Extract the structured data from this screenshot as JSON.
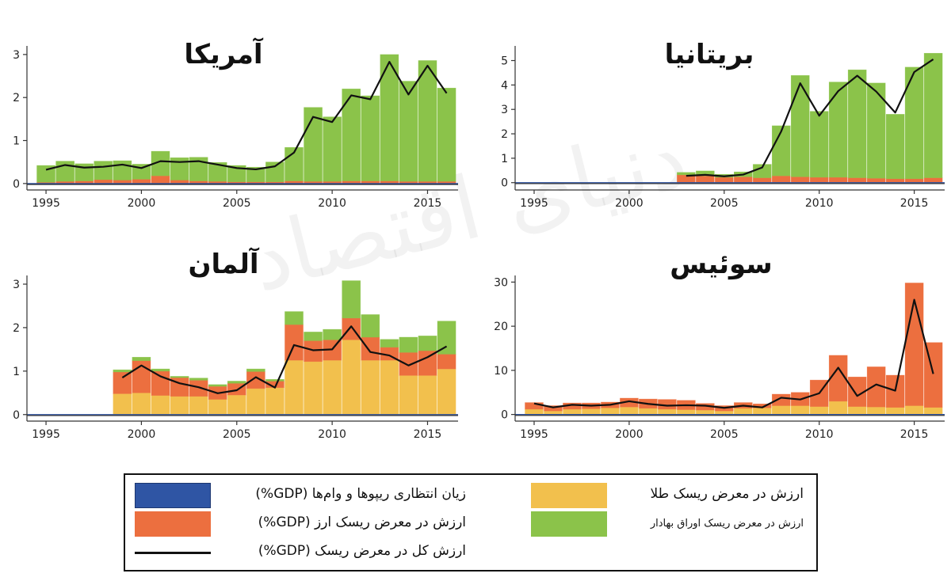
{
  "colors": {
    "repo": "#2f55a4",
    "fx": "#ec6f3f",
    "gold": "#f2c04d",
    "securities": "#8bc34a",
    "total": "#111111",
    "axis": "#333333"
  },
  "chart_data": [
    {
      "type": "bar",
      "title": "آمریکا",
      "xlim": [
        1994,
        2016.6
      ],
      "ylim": [
        -0.15,
        3.2
      ],
      "yticks": [
        0,
        1,
        2,
        3
      ],
      "xticks": [
        1995,
        2000,
        2005,
        2010,
        2015
      ],
      "years": [
        1995,
        1996,
        1997,
        1998,
        1999,
        2000,
        2001,
        2002,
        2003,
        2004,
        2005,
        2006,
        2007,
        2008,
        2009,
        2010,
        2011,
        2012,
        2013,
        2014,
        2015,
        2016
      ],
      "series": [
        {
          "name": "fx",
          "values": [
            0.03,
            0.05,
            0.06,
            0.09,
            0.08,
            0.1,
            0.18,
            0.08,
            0.06,
            0.05,
            0.04,
            0.04,
            0.04,
            0.06,
            0.05,
            0.05,
            0.06,
            0.06,
            0.06,
            0.05,
            0.05,
            0.05
          ]
        },
        {
          "name": "gold",
          "values": [
            0,
            0,
            0,
            0,
            0,
            0,
            0,
            0,
            0,
            0,
            0,
            0,
            0,
            0,
            0,
            0,
            0,
            0,
            0,
            0,
            0,
            0
          ]
        },
        {
          "name": "securities",
          "values": [
            0.39,
            0.47,
            0.4,
            0.43,
            0.45,
            0.35,
            0.57,
            0.52,
            0.55,
            0.44,
            0.38,
            0.34,
            0.46,
            0.78,
            1.72,
            1.5,
            2.14,
            1.98,
            2.94,
            2.33,
            2.81,
            2.17
          ]
        }
      ],
      "total": [
        0.32,
        0.43,
        0.37,
        0.39,
        0.44,
        0.36,
        0.52,
        0.5,
        0.52,
        0.44,
        0.36,
        0.33,
        0.4,
        0.72,
        1.55,
        1.43,
        2.05,
        1.96,
        2.83,
        2.07,
        2.74,
        2.1
      ]
    },
    {
      "type": "bar",
      "title": "بریتانیا",
      "xlim": [
        1994,
        2016.6
      ],
      "ylim": [
        -0.3,
        5.6
      ],
      "yticks": [
        0,
        1,
        2,
        3,
        4,
        5
      ],
      "xticks": [
        1995,
        2000,
        2005,
        2010,
        2015
      ],
      "years": [
        2003,
        2004,
        2005,
        2006,
        2007,
        2008,
        2009,
        2010,
        2011,
        2012,
        2013,
        2014,
        2015,
        2016
      ],
      "series": [
        {
          "name": "fx",
          "values": [
            0.32,
            0.28,
            0.22,
            0.24,
            0.2,
            0.28,
            0.24,
            0.22,
            0.22,
            0.2,
            0.18,
            0.16,
            0.16,
            0.2
          ]
        },
        {
          "name": "gold",
          "values": [
            0,
            0,
            0,
            0,
            0,
            0,
            0,
            0,
            0,
            0,
            0,
            0,
            0,
            0
          ]
        },
        {
          "name": "securities",
          "values": [
            0.1,
            0.2,
            0.12,
            0.2,
            0.55,
            2.05,
            4.15,
            2.7,
            3.9,
            4.42,
            3.9,
            2.64,
            4.57,
            5.1
          ]
        }
      ],
      "total": [
        0.28,
        0.32,
        0.26,
        0.33,
        0.62,
        2.1,
        4.07,
        2.74,
        3.75,
        4.38,
        3.73,
        2.87,
        4.53,
        5.05
      ]
    },
    {
      "type": "bar",
      "title": "آلمان",
      "xlim": [
        1994,
        2016.6
      ],
      "ylim": [
        -0.15,
        3.2
      ],
      "yticks": [
        0,
        1,
        2,
        3
      ],
      "xticks": [
        1995,
        2000,
        2005,
        2010,
        2015
      ],
      "years": [
        1999,
        2000,
        2001,
        2002,
        2003,
        2004,
        2005,
        2006,
        2007,
        2008,
        2009,
        2010,
        2011,
        2012,
        2013,
        2014,
        2015,
        2016
      ],
      "series": [
        {
          "name": "gold",
          "values": [
            0.48,
            0.5,
            0.44,
            0.42,
            0.42,
            0.35,
            0.45,
            0.6,
            0.62,
            1.25,
            1.22,
            1.25,
            1.72,
            1.25,
            1.25,
            0.9,
            0.9,
            1.05
          ]
        },
        {
          "name": "fx",
          "values": [
            0.5,
            0.74,
            0.56,
            0.43,
            0.37,
            0.3,
            0.27,
            0.39,
            0.15,
            0.82,
            0.48,
            0.47,
            0.5,
            0.53,
            0.3,
            0.53,
            0.57,
            0.34
          ]
        },
        {
          "name": "securities",
          "values": [
            0.05,
            0.08,
            0.05,
            0.03,
            0.05,
            0.04,
            0.05,
            0.06,
            0.04,
            0.3,
            0.2,
            0.24,
            0.86,
            0.52,
            0.18,
            0.35,
            0.34,
            0.76
          ]
        }
      ],
      "total": [
        0.85,
        1.13,
        0.88,
        0.72,
        0.63,
        0.49,
        0.56,
        0.86,
        0.62,
        1.6,
        1.48,
        1.5,
        2.03,
        1.44,
        1.36,
        1.13,
        1.32,
        1.57
      ]
    },
    {
      "type": "bar",
      "title": "سوئیس",
      "xlim": [
        1994,
        2016.6
      ],
      "ylim": [
        -1.5,
        31.5
      ],
      "yticks": [
        0,
        10,
        20,
        30
      ],
      "xticks": [
        1995,
        2000,
        2005,
        2010,
        2015
      ],
      "years": [
        1995,
        1996,
        1997,
        1998,
        1999,
        2000,
        2001,
        2002,
        2003,
        2004,
        2005,
        2006,
        2007,
        2008,
        2009,
        2010,
        2011,
        2012,
        2013,
        2014,
        2015,
        2016
      ],
      "series": [
        {
          "name": "gold",
          "values": [
            1.2,
            0.8,
            1.2,
            1.3,
            1.5,
            1.7,
            1.4,
            1.2,
            1.1,
            1.0,
            0.8,
            1.4,
            1.5,
            2.0,
            2.0,
            1.8,
            3.0,
            1.8,
            1.7,
            1.6,
            2.0,
            1.6
          ]
        },
        {
          "name": "fx",
          "values": [
            1.5,
            1.2,
            1.4,
            1.3,
            1.3,
            2.0,
            2.1,
            2.2,
            2.1,
            1.5,
            1.2,
            1.3,
            0.9,
            2.6,
            3.0,
            6.0,
            10.4,
            6.7,
            9.1,
            7.3,
            27.8,
            14.7
          ]
        },
        {
          "name": "securities",
          "values": [
            0,
            0,
            0,
            0,
            0,
            0,
            0,
            0,
            0,
            0,
            0,
            0,
            0,
            0,
            0,
            0,
            0,
            0,
            0,
            0,
            0,
            0
          ]
        }
      ],
      "total": [
        2.5,
        1.6,
        2.2,
        2.0,
        2.2,
        3.0,
        2.4,
        2.0,
        2.1,
        2.0,
        1.5,
        2.0,
        1.6,
        3.8,
        3.4,
        4.8,
        10.6,
        4.2,
        6.8,
        5.4,
        26.0,
        9.2
      ]
    }
  ],
  "legend": {
    "repo": "زیان انتظاری ریپوها و وام‌ها (GDP%)",
    "fx": "ارزش در معرض ریسک ارز  (GDP%)",
    "total": "ارزش کل در معرض ریسک (GDP%)",
    "gold": "ارزش در معرض ریسک طلا",
    "securities": "ارزش در معرض ریسک اوراق بهادار"
  },
  "watermark": "دنیای اقتصاد"
}
